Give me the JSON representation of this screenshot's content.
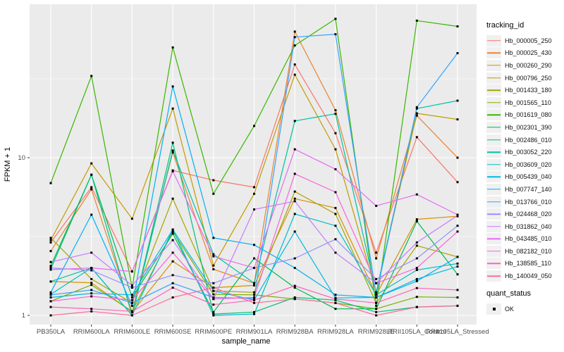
{
  "figure": {
    "panel_background": "#EBEBEB",
    "gridline_color": "#FFFFFF",
    "axis_text_color": "#4D4D4D",
    "axis_title_color": "#000000",
    "point_color": "#000000"
  },
  "axes": {
    "x_label": "sample_name",
    "y_label": "FPKM + 1",
    "y_tick_labels": [
      "10",
      "1"
    ]
  },
  "legend": {
    "tracking_title": "tracking_id",
    "quant_title": "quant_status",
    "quant_items": [
      {
        "label": "OK"
      }
    ]
  },
  "chart_data": {
    "type": "line",
    "title": "",
    "xlabel": "sample_name",
    "ylabel": "FPKM + 1",
    "y_scale": "log10",
    "ylim": [
      0.875,
      93
    ],
    "y_major_ticks": [
      1,
      10
    ],
    "y_minor_gridlines": [
      3.162,
      31.623
    ],
    "grid": "on",
    "legend_position": "right",
    "marker": "black-square",
    "categories": [
      "PB350LA",
      "RRIM600LA",
      "RRIM600LE",
      "RRIM600SE",
      "RRIM600PE",
      "RRIM901LA",
      "RRIM928BA",
      "RRIM928LA",
      "RRIM928LE",
      "RRII105LA_Control",
      "RRII105LA_Stressed"
    ],
    "series": [
      {
        "name": "Hb_000005_250",
        "color": "#F8766D",
        "values": [
          2.9,
          6.5,
          1.9,
          8.3,
          7.2,
          6.5,
          39,
          14.3,
          2.5,
          13.5,
          7.0
        ]
      },
      {
        "name": "Hb_000025_430",
        "color": "#EA8331",
        "values": [
          2.56,
          6.3,
          1.05,
          10.8,
          1.96,
          1.6,
          63,
          20,
          2.3,
          18.5,
          10.0
        ]
      },
      {
        "name": "Hb_000260_290",
        "color": "#D89000",
        "values": [
          1.64,
          1.61,
          1.05,
          2.2,
          1.5,
          1.55,
          5.5,
          4.8,
          1.35,
          4.07,
          4.25
        ]
      },
      {
        "name": "Hb_000796_250",
        "color": "#C09B00",
        "values": [
          3.0,
          9.2,
          4.1,
          20.5,
          2.07,
          5.9,
          33.6,
          11.3,
          1.4,
          19.1,
          17.5
        ]
      },
      {
        "name": "Hb_001433_180",
        "color": "#A3A500",
        "values": [
          3.1,
          1.7,
          1.2,
          5.5,
          1.43,
          1.4,
          6.1,
          4.4,
          1.2,
          2.77,
          2.35
        ]
      },
      {
        "name": "Hb_001565_110",
        "color": "#7CAE00",
        "values": [
          1.23,
          1.56,
          1.06,
          3.4,
          1.36,
          1.35,
          1.27,
          1.2,
          1.1,
          1.31,
          1.3
        ]
      },
      {
        "name": "Hb_001619_080",
        "color": "#39B600",
        "values": [
          6.9,
          33,
          1.5,
          50,
          5.9,
          15.9,
          51.5,
          76,
          1.15,
          74,
          68
        ]
      },
      {
        "name": "Hb_002301_390",
        "color": "#00BB4E",
        "values": [
          2.06,
          7.8,
          1.3,
          3.3,
          1.05,
          2.3,
          1.5,
          1.1,
          1.1,
          3.95,
          1.82
        ]
      },
      {
        "name": "Hb_002486_010",
        "color": "#00BF7D",
        "values": [
          1.97,
          7.8,
          1.0,
          12.45,
          1.02,
          1.05,
          1.3,
          1.25,
          1.05,
          1.13,
          1.15
        ]
      },
      {
        "name": "Hb_003052_220",
        "color": "#00C1A3",
        "values": [
          1.64,
          2.0,
          1.0,
          11.1,
          2.44,
          1.6,
          17.1,
          19.0,
          1.4,
          20.5,
          23
        ]
      },
      {
        "name": "Hb_003609_020",
        "color": "#00BFC4",
        "values": [
          1.36,
          2.0,
          1.0,
          3.5,
          1.0,
          1.02,
          4.4,
          3.7,
          1.35,
          1.94,
          2.13
        ]
      },
      {
        "name": "Hb_005439_040",
        "color": "#00BAE0",
        "values": [
          1.3,
          1.38,
          1.35,
          3.5,
          1.43,
          1.25,
          3.4,
          1.29,
          1.3,
          1.7,
          2.04
        ]
      },
      {
        "name": "Hb_007747_140",
        "color": "#00B0F6",
        "values": [
          1.4,
          4.35,
          1.15,
          28.3,
          3.1,
          2.8,
          2.0,
          1.35,
          1.3,
          1.65,
          2.35
        ]
      },
      {
        "name": "Hb_013766_010",
        "color": "#35A2FF",
        "values": [
          1.35,
          1.45,
          1.2,
          1.6,
          1.3,
          1.28,
          58.2,
          60.7,
          1.35,
          20.9,
          46
        ]
      },
      {
        "name": "Hb_024468_020",
        "color": "#9590FF",
        "values": [
          2.0,
          1.93,
          1.5,
          1.8,
          1.6,
          2.0,
          2.3,
          3.04,
          1.7,
          2.3,
          3.7
        ]
      },
      {
        "name": "Hb_031862_040",
        "color": "#C77CFF",
        "values": [
          2.18,
          2.5,
          1.55,
          3.0,
          1.27,
          4.7,
          5.3,
          2.5,
          1.6,
          2.9,
          4.3
        ]
      },
      {
        "name": "Hb_043485_010",
        "color": "#E76BF3",
        "values": [
          1.95,
          2.0,
          1.9,
          8.2,
          2.37,
          2.0,
          11.3,
          8.45,
          4.95,
          5.85,
          4.35
        ]
      },
      {
        "name": "Hb_082182_010",
        "color": "#FA62DB",
        "values": [
          1.23,
          1.32,
          1.25,
          2.5,
          1.27,
          1.3,
          7.9,
          6.04,
          1.6,
          2.0,
          3.4
        ]
      },
      {
        "name": "Hb_138585_110",
        "color": "#FF62BC",
        "values": [
          1.13,
          1.1,
          1.06,
          1.5,
          1.17,
          1.25,
          1.54,
          1.27,
          1.2,
          1.49,
          1.45
        ]
      },
      {
        "name": "Hb_140049_050",
        "color": "#FF6A98",
        "values": [
          1.0,
          1.06,
          1.0,
          1.3,
          1.5,
          1.2,
          1.27,
          1.2,
          1.0,
          1.13,
          1.15
        ]
      }
    ]
  }
}
